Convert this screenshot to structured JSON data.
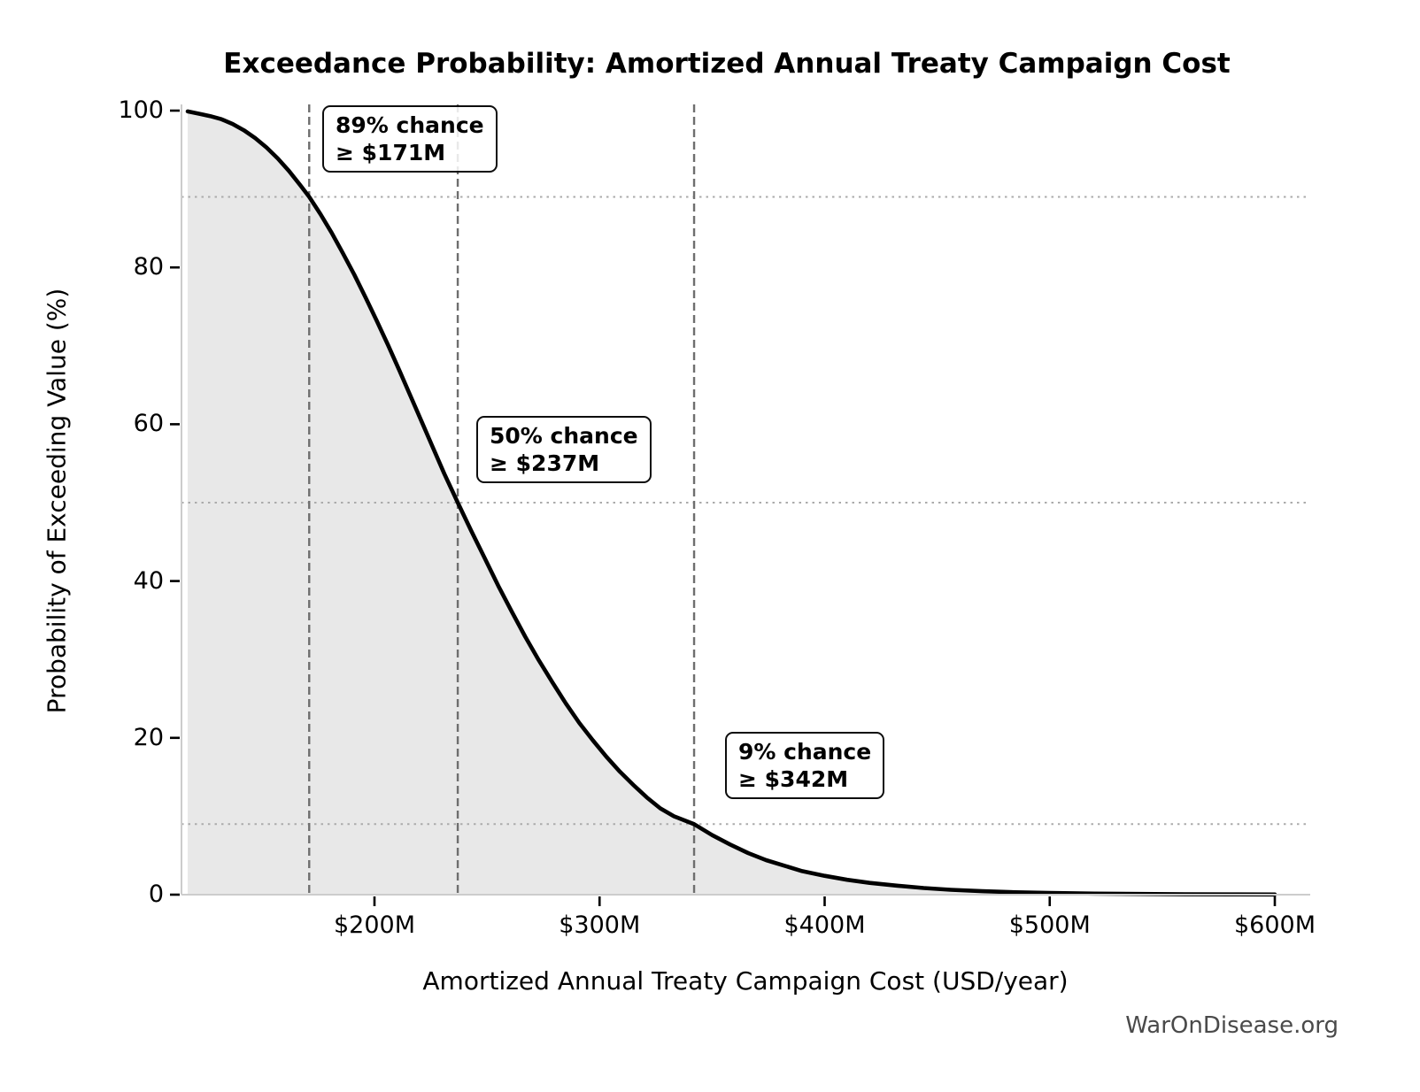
{
  "title": "Exceedance Probability: Amortized Annual Treaty Campaign Cost",
  "watermark": "WarOnDisease.org",
  "colors": {
    "curve": "#000000",
    "area_fill": "#e8e8e8",
    "spine": "#cccccc",
    "tick": "#000000",
    "dashed_refline": "#6e6e6e",
    "dotted_refline": "#ababab",
    "annotation_border": "#0d0d0d",
    "watermark_text": "#4a4a4a"
  },
  "chart_data": {
    "type": "area",
    "title": "Exceedance Probability: Amortized Annual Treaty Campaign Cost",
    "xlabel": "Amortized Annual Treaty Campaign Cost (USD/year)",
    "ylabel": "Probability of Exceeding Value (%)",
    "xlim": [
      114,
      616
    ],
    "ylim": [
      0,
      100
    ],
    "grid": "dotted horizontal lines at annotated probabilities; dashed vertical lines at annotated costs",
    "legend": "none",
    "x_ticks": [
      {
        "value": 200,
        "label": "$200M"
      },
      {
        "value": 300,
        "label": "$300M"
      },
      {
        "value": 400,
        "label": "$400M"
      },
      {
        "value": 500,
        "label": "$500M"
      },
      {
        "value": 600,
        "label": "$600M"
      }
    ],
    "y_ticks": [
      {
        "value": 0,
        "label": "0"
      },
      {
        "value": 20,
        "label": "20"
      },
      {
        "value": 40,
        "label": "40"
      },
      {
        "value": 60,
        "label": "60"
      },
      {
        "value": 80,
        "label": "80"
      },
      {
        "value": 100,
        "label": "100"
      }
    ],
    "series": [
      {
        "name": "exceedance-curve",
        "x_unit": "USD millions per year",
        "y_unit": "percent probability of exceeding",
        "points": [
          [
            117,
            99.9
          ],
          [
            122,
            99.6
          ],
          [
            127,
            99.3
          ],
          [
            132,
            98.9
          ],
          [
            137,
            98.3
          ],
          [
            142,
            97.5
          ],
          [
            147,
            96.5
          ],
          [
            152,
            95.3
          ],
          [
            157,
            93.9
          ],
          [
            162,
            92.3
          ],
          [
            167,
            90.5
          ],
          [
            171,
            89.0
          ],
          [
            176,
            86.8
          ],
          [
            181,
            84.4
          ],
          [
            186,
            81.8
          ],
          [
            191,
            79.1
          ],
          [
            196,
            76.2
          ],
          [
            201,
            73.2
          ],
          [
            206,
            70.1
          ],
          [
            211,
            66.9
          ],
          [
            216,
            63.6
          ],
          [
            221,
            60.3
          ],
          [
            226,
            57.0
          ],
          [
            231,
            53.7
          ],
          [
            237,
            50.0
          ],
          [
            243,
            46.4
          ],
          [
            249,
            42.9
          ],
          [
            255,
            39.4
          ],
          [
            261,
            36.1
          ],
          [
            267,
            32.9
          ],
          [
            273,
            29.9
          ],
          [
            279,
            27.1
          ],
          [
            285,
            24.4
          ],
          [
            291,
            21.9
          ],
          [
            297,
            19.7
          ],
          [
            303,
            17.6
          ],
          [
            309,
            15.7
          ],
          [
            315,
            14.0
          ],
          [
            321,
            12.4
          ],
          [
            327,
            11.0
          ],
          [
            333,
            10.0
          ],
          [
            342,
            9.0
          ],
          [
            350,
            7.6
          ],
          [
            358,
            6.4
          ],
          [
            366,
            5.3
          ],
          [
            374,
            4.4
          ],
          [
            382,
            3.7
          ],
          [
            390,
            3.0
          ],
          [
            400,
            2.4
          ],
          [
            410,
            1.9
          ],
          [
            420,
            1.5
          ],
          [
            432,
            1.15
          ],
          [
            444,
            0.85
          ],
          [
            456,
            0.62
          ],
          [
            470,
            0.44
          ],
          [
            485,
            0.3
          ],
          [
            500,
            0.22
          ],
          [
            520,
            0.14
          ],
          [
            540,
            0.09
          ],
          [
            560,
            0.05
          ],
          [
            580,
            0.03
          ],
          [
            600,
            0.02
          ]
        ]
      }
    ],
    "annotations": [
      {
        "probability_pct": 89,
        "value_musd": 171,
        "line1": "89% chance",
        "line2": "≥ $171M"
      },
      {
        "probability_pct": 50,
        "value_musd": 237,
        "line1": "50% chance",
        "line2": "≥ $237M"
      },
      {
        "probability_pct": 9,
        "value_musd": 342,
        "line1": "9% chance",
        "line2": "≥ $342M"
      }
    ]
  }
}
